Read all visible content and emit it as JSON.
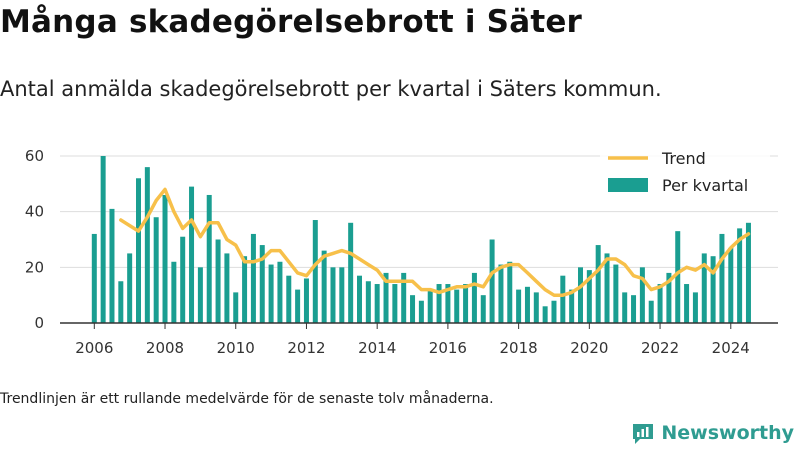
{
  "title": "Många skadegörelsebrott i Säter",
  "subtitle": "Antal anmälda skadegörelsebrott per kvartal i Säters kommun.",
  "note": "Trendlinjen är ett rullande medelvärde för de senaste tolv månaderna.",
  "brand": {
    "name": "Newsworthy",
    "color": "#2f9c91"
  },
  "colors": {
    "bar": "#1a9e91",
    "trend": "#f7c04a",
    "grid": "#dddddd",
    "axis": "#333333"
  },
  "chart_data": {
    "type": "bar",
    "x_start": "2006 Q1",
    "ylim": [
      0,
      60
    ],
    "yticks": [
      0,
      20,
      40,
      60
    ],
    "xticks": [
      "2006",
      "2008",
      "2010",
      "2012",
      "2014",
      "2016",
      "2018",
      "2020",
      "2022",
      "2024"
    ],
    "grid": true,
    "legend_position": "top-right",
    "series": [
      {
        "name": "Per kvartal",
        "kind": "bar",
        "values": [
          32,
          60,
          41,
          15,
          25,
          52,
          56,
          38,
          46,
          22,
          31,
          49,
          20,
          46,
          30,
          25,
          11,
          24,
          32,
          28,
          21,
          22,
          17,
          12,
          16,
          37,
          26,
          20,
          20,
          36,
          17,
          15,
          14,
          18,
          14,
          18,
          10,
          8,
          12,
          14,
          14,
          12,
          14,
          18,
          10,
          30,
          21,
          22,
          12,
          13,
          11,
          6,
          8,
          17,
          12,
          20,
          19,
          28,
          25,
          21,
          11,
          10,
          20,
          8,
          14,
          18,
          33,
          14,
          11,
          25,
          24,
          32,
          27,
          34,
          36
        ]
      },
      {
        "name": "Trend",
        "kind": "line",
        "values": [
          null,
          null,
          null,
          37,
          35,
          33,
          38,
          44,
          48,
          40,
          34,
          37,
          31,
          36,
          36,
          30,
          28,
          22,
          22,
          23,
          26,
          26,
          22,
          18,
          17,
          21,
          24,
          25,
          26,
          25,
          23,
          21,
          19,
          15,
          15,
          15,
          15,
          12,
          12,
          11,
          12,
          13,
          13,
          14,
          13,
          18,
          20,
          21,
          21,
          18,
          15,
          12,
          10,
          10,
          11,
          13,
          16,
          19,
          23,
          23,
          21,
          17,
          16,
          12,
          13,
          15,
          18,
          20,
          19,
          21,
          18,
          23,
          27,
          30,
          32
        ]
      }
    ]
  }
}
